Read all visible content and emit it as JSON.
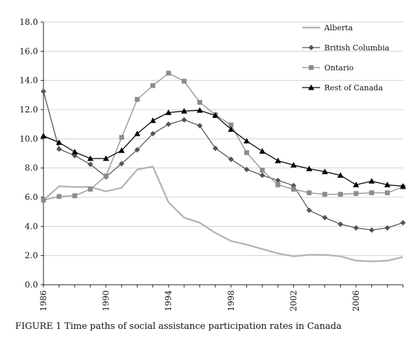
{
  "caption": "FIGURE 1   Time paths of social assistance participation rates in Canada",
  "chart_data": {
    "type": "line",
    "title": "",
    "xlabel": "",
    "ylabel": "",
    "x": [
      1986,
      1987,
      1988,
      1989,
      1990,
      1991,
      1992,
      1993,
      1994,
      1995,
      1996,
      1997,
      1998,
      1999,
      2000,
      2001,
      2002,
      2003,
      2004,
      2005,
      2006,
      2007,
      2008,
      2009
    ],
    "xlim": [
      1986,
      2009
    ],
    "ylim": [
      0,
      18
    ],
    "x_ticks": [
      "1986",
      "1990",
      "1994",
      "1998",
      "2002",
      "2006"
    ],
    "y_ticks": [
      "0.0",
      "2.0",
      "4.0",
      "6.0",
      "8.0",
      "10.0",
      "12.0",
      "14.0",
      "16.0",
      "18.0"
    ],
    "grid": "horizontal",
    "legend_position": "top-right",
    "series": [
      {
        "name": "Alberta",
        "color": "#b4b4b4",
        "marker": "none",
        "values": [
          5.8,
          6.75,
          6.7,
          6.7,
          6.4,
          6.65,
          7.9,
          8.1,
          5.65,
          4.6,
          4.25,
          3.55,
          3.0,
          2.75,
          2.45,
          2.15,
          1.95,
          2.05,
          2.05,
          1.95,
          1.65,
          1.6,
          1.65,
          1.9
        ]
      },
      {
        "name": "British Columbia",
        "color": "#555555",
        "marker": "diamond",
        "values": [
          13.25,
          9.3,
          8.85,
          8.25,
          7.4,
          8.3,
          9.25,
          10.35,
          11.0,
          11.3,
          10.9,
          9.35,
          8.6,
          7.9,
          7.5,
          7.15,
          6.8,
          5.1,
          4.6,
          4.15,
          3.9,
          3.75,
          3.9,
          4.25
        ]
      },
      {
        "name": "Ontario",
        "color": "#8c8c8c",
        "marker": "square",
        "values": [
          5.8,
          6.05,
          6.1,
          6.55,
          7.45,
          10.1,
          12.7,
          13.65,
          14.5,
          13.95,
          12.5,
          11.65,
          10.95,
          9.05,
          7.85,
          6.85,
          6.55,
          6.3,
          6.2,
          6.2,
          6.25,
          6.3,
          6.3,
          6.7
        ]
      },
      {
        "name": "Rest of Canada",
        "color": "#000000",
        "marker": "triangle",
        "values": [
          10.2,
          9.75,
          9.1,
          8.65,
          8.65,
          9.2,
          10.35,
          11.25,
          11.8,
          11.9,
          11.95,
          11.6,
          10.65,
          9.85,
          9.15,
          8.5,
          8.2,
          7.95,
          7.75,
          7.5,
          6.85,
          7.1,
          6.85,
          6.75
        ]
      }
    ]
  }
}
